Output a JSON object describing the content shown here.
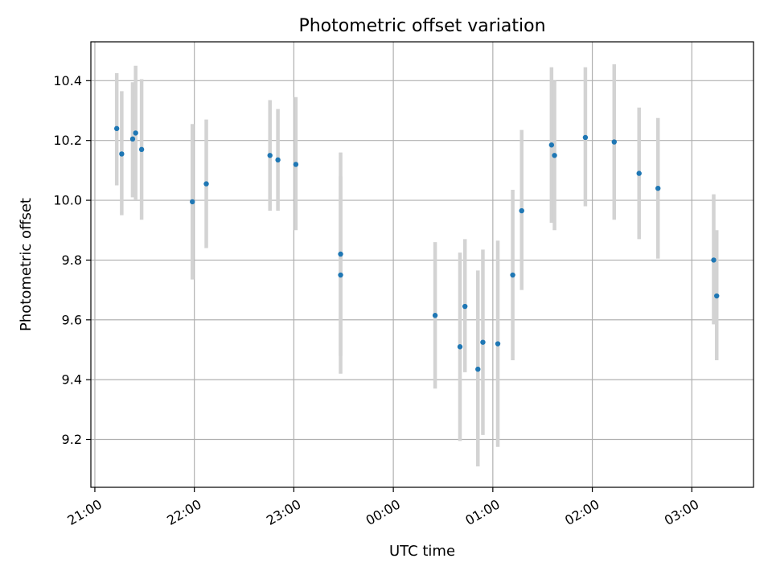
{
  "chart_data": {
    "type": "scatter",
    "title": "Photometric offset variation",
    "xlabel": "UTC time",
    "ylabel": "Photometric offset",
    "x_unit": "hours relative to 00:00 UTC",
    "xlim": [
      -3.04,
      3.62
    ],
    "ylim": [
      9.04,
      10.53
    ],
    "grid": true,
    "legend": "none",
    "x_ticks": [
      {
        "value": -3,
        "label": "21:00"
      },
      {
        "value": -2,
        "label": "22:00"
      },
      {
        "value": -1,
        "label": "23:00"
      },
      {
        "value": 0,
        "label": "00:00"
      },
      {
        "value": 1,
        "label": "01:00"
      },
      {
        "value": 2,
        "label": "02:00"
      },
      {
        "value": 3,
        "label": "03:00"
      }
    ],
    "y_ticks": [
      {
        "value": 9.2,
        "label": "9.2"
      },
      {
        "value": 9.4,
        "label": "9.4"
      },
      {
        "value": 9.6,
        "label": "9.6"
      },
      {
        "value": 9.8,
        "label": "9.8"
      },
      {
        "value": 10.0,
        "label": "10.0"
      },
      {
        "value": 10.2,
        "label": "10.2"
      },
      {
        "value": 10.4,
        "label": "10.4"
      }
    ],
    "colors": {
      "points": "#1f77b4",
      "errorbars": "#d3d3d3",
      "grid": "#b0b0b0"
    },
    "series": [
      {
        "x": [
          -2.78,
          -2.73,
          -2.62,
          -2.59,
          -2.53,
          -2.02,
          -1.88,
          -1.24,
          -1.16,
          -0.98,
          -0.53,
          -0.53,
          0.42,
          0.67,
          0.72,
          0.85,
          0.9,
          1.05,
          1.2,
          1.29,
          1.59,
          1.62,
          1.93,
          2.22,
          2.47,
          2.66,
          3.22,
          3.25
        ],
        "y": [
          10.24,
          10.155,
          10.205,
          10.225,
          10.17,
          9.995,
          10.055,
          10.15,
          10.135,
          10.12,
          9.82,
          9.75,
          9.615,
          9.51,
          9.645,
          9.435,
          9.525,
          9.52,
          9.75,
          9.965,
          10.185,
          10.15,
          10.21,
          10.195,
          10.09,
          10.04,
          9.8,
          9.68
        ],
        "err_low": [
          10.05,
          9.95,
          10.01,
          10.0,
          9.935,
          9.735,
          9.84,
          9.965,
          9.965,
          9.9,
          9.48,
          9.42,
          9.37,
          9.195,
          9.425,
          9.11,
          9.215,
          9.175,
          9.465,
          9.7,
          9.925,
          9.9,
          9.98,
          9.935,
          9.87,
          9.805,
          9.585,
          9.465
        ],
        "err_high": [
          10.425,
          10.365,
          10.395,
          10.45,
          10.405,
          10.255,
          10.27,
          10.335,
          10.305,
          10.345,
          10.16,
          10.08,
          9.86,
          9.825,
          9.87,
          9.765,
          9.835,
          9.865,
          10.035,
          10.235,
          10.445,
          10.4,
          10.445,
          10.455,
          10.31,
          10.275,
          10.02,
          9.9
        ]
      }
    ]
  }
}
